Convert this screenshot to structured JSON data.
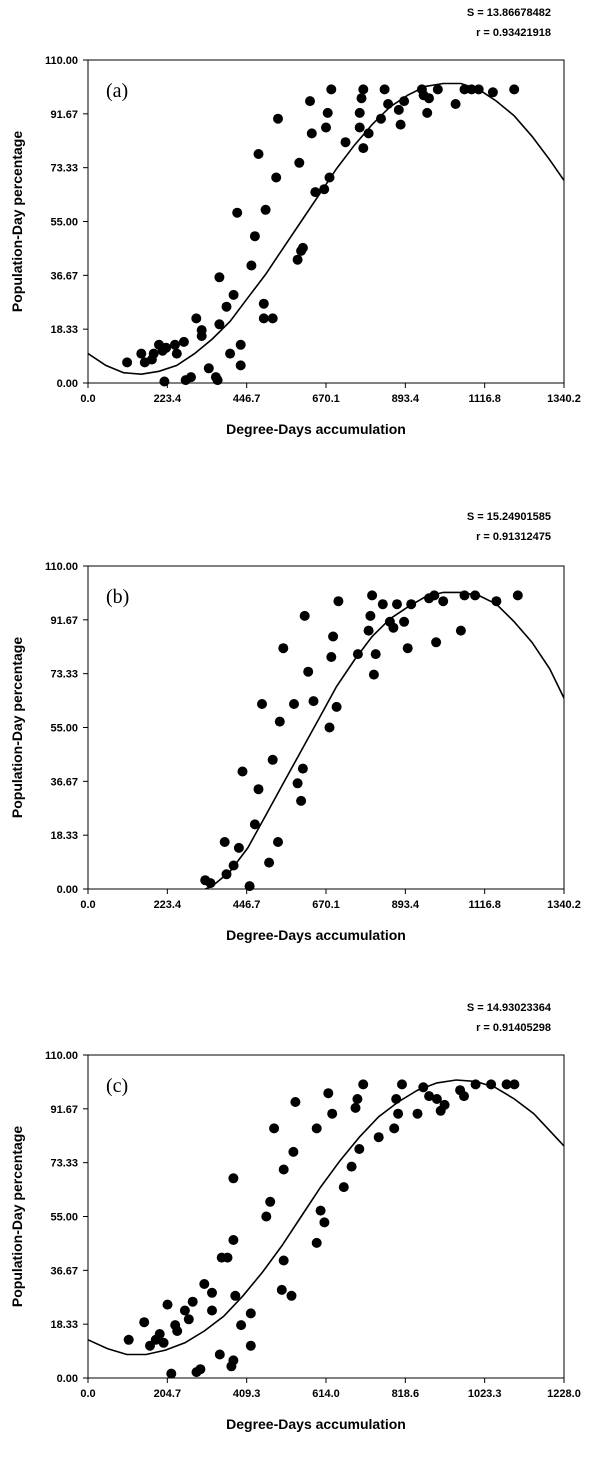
{
  "chart_data": [
    {
      "type": "scatter",
      "panel_label": "(a)",
      "stats": [
        "S = 13.86678482",
        "r = 0.93421918"
      ],
      "xlabel": "Degree-Days accumulation",
      "ylabel": "Population-Day percentage",
      "xlim": [
        0,
        1340.2
      ],
      "ylim": [
        0,
        110
      ],
      "xticks": [
        "0.0",
        "223.4",
        "446.7",
        "670.1",
        "893.4",
        "1116.8",
        "1340.2"
      ],
      "yticks": [
        "0.00",
        "18.33",
        "36.67",
        "55.00",
        "73.33",
        "91.67",
        "110.00"
      ],
      "curve": [
        [
          0,
          10
        ],
        [
          50,
          6
        ],
        [
          100,
          3.5
        ],
        [
          150,
          3
        ],
        [
          200,
          4
        ],
        [
          250,
          6
        ],
        [
          300,
          10
        ],
        [
          350,
          15
        ],
        [
          400,
          21
        ],
        [
          450,
          29
        ],
        [
          500,
          37
        ],
        [
          550,
          46
        ],
        [
          600,
          55
        ],
        [
          650,
          64
        ],
        [
          700,
          73
        ],
        [
          750,
          81
        ],
        [
          800,
          88
        ],
        [
          850,
          94
        ],
        [
          900,
          98
        ],
        [
          950,
          101
        ],
        [
          1000,
          102
        ],
        [
          1050,
          102
        ],
        [
          1100,
          100
        ],
        [
          1150,
          96
        ],
        [
          1200,
          91
        ],
        [
          1250,
          84
        ],
        [
          1300,
          76
        ],
        [
          1340.2,
          69
        ]
      ],
      "points": [
        [
          110,
          7
        ],
        [
          150,
          10
        ],
        [
          160,
          7
        ],
        [
          180,
          8
        ],
        [
          185,
          10
        ],
        [
          200,
          13
        ],
        [
          210,
          11
        ],
        [
          220,
          12
        ],
        [
          215,
          0.5
        ],
        [
          245,
          13
        ],
        [
          250,
          10
        ],
        [
          270,
          14
        ],
        [
          275,
          1
        ],
        [
          290,
          2
        ],
        [
          305,
          22
        ],
        [
          320,
          16
        ],
        [
          320,
          18
        ],
        [
          340,
          5
        ],
        [
          360,
          2
        ],
        [
          365,
          1
        ],
        [
          370,
          20
        ],
        [
          370,
          36
        ],
        [
          390,
          26
        ],
        [
          400,
          10
        ],
        [
          410,
          30
        ],
        [
          420,
          58
        ],
        [
          430,
          6
        ],
        [
          430,
          13
        ],
        [
          460,
          40
        ],
        [
          470,
          50
        ],
        [
          480,
          78
        ],
        [
          495,
          27
        ],
        [
          495,
          22
        ],
        [
          500,
          59
        ],
        [
          520,
          22
        ],
        [
          530,
          70
        ],
        [
          535,
          90
        ],
        [
          590,
          42
        ],
        [
          595,
          75
        ],
        [
          600,
          45
        ],
        [
          605,
          46
        ],
        [
          625,
          96
        ],
        [
          630,
          85
        ],
        [
          640,
          65
        ],
        [
          665,
          66
        ],
        [
          670,
          87
        ],
        [
          675,
          92
        ],
        [
          680,
          70
        ],
        [
          685,
          100
        ],
        [
          725,
          82
        ],
        [
          765,
          87
        ],
        [
          765,
          92
        ],
        [
          770,
          97
        ],
        [
          775,
          100
        ],
        [
          775,
          80
        ],
        [
          790,
          85
        ],
        [
          825,
          90
        ],
        [
          835,
          100
        ],
        [
          845,
          95
        ],
        [
          875,
          93
        ],
        [
          880,
          88
        ],
        [
          890,
          96
        ],
        [
          940,
          100
        ],
        [
          945,
          98
        ],
        [
          955,
          92
        ],
        [
          960,
          97
        ],
        [
          985,
          100
        ],
        [
          1035,
          95
        ],
        [
          1060,
          100
        ],
        [
          1080,
          100
        ],
        [
          1100,
          100
        ],
        [
          1140,
          99
        ],
        [
          1200,
          100
        ]
      ]
    },
    {
      "type": "scatter",
      "panel_label": "(b)",
      "stats": [
        "S = 15.24901585",
        "r = 0.91312475"
      ],
      "xlabel": "Degree-Days accumulation",
      "ylabel": "Population-Day percentage",
      "xlim": [
        0,
        1340.2
      ],
      "ylim": [
        0,
        110
      ],
      "xticks": [
        "0.0",
        "223.4",
        "446.7",
        "670.1",
        "893.4",
        "1116.8",
        "1340.2"
      ],
      "yticks": [
        "0.00",
        "18.33",
        "36.67",
        "55.00",
        "73.33",
        "91.67",
        "110.00"
      ],
      "curve": [
        [
          330,
          0
        ],
        [
          350,
          1
        ],
        [
          400,
          6
        ],
        [
          450,
          14
        ],
        [
          500,
          25
        ],
        [
          550,
          36
        ],
        [
          600,
          47
        ],
        [
          650,
          58
        ],
        [
          700,
          69
        ],
        [
          750,
          78
        ],
        [
          800,
          86
        ],
        [
          850,
          92
        ],
        [
          900,
          96
        ],
        [
          950,
          99.5
        ],
        [
          1000,
          101
        ],
        [
          1050,
          101
        ],
        [
          1100,
          100
        ],
        [
          1150,
          97
        ],
        [
          1200,
          91
        ],
        [
          1250,
          84
        ],
        [
          1300,
          75
        ],
        [
          1340.2,
          65
        ]
      ],
      "points": [
        [
          330,
          3
        ],
        [
          345,
          2
        ],
        [
          385,
          16
        ],
        [
          390,
          5
        ],
        [
          410,
          8
        ],
        [
          425,
          14
        ],
        [
          435,
          40
        ],
        [
          455,
          1
        ],
        [
          470,
          22
        ],
        [
          480,
          34
        ],
        [
          490,
          63
        ],
        [
          510,
          9
        ],
        [
          520,
          44
        ],
        [
          535,
          16
        ],
        [
          540,
          57
        ],
        [
          550,
          82
        ],
        [
          580,
          63
        ],
        [
          590,
          36
        ],
        [
          600,
          30
        ],
        [
          605,
          41
        ],
        [
          610,
          93
        ],
        [
          620,
          74
        ],
        [
          635,
          64
        ],
        [
          680,
          55
        ],
        [
          685,
          79
        ],
        [
          690,
          86
        ],
        [
          700,
          62
        ],
        [
          705,
          98
        ],
        [
          760,
          80
        ],
        [
          790,
          88
        ],
        [
          795,
          93
        ],
        [
          800,
          100
        ],
        [
          805,
          73
        ],
        [
          810,
          80
        ],
        [
          830,
          97
        ],
        [
          850,
          91
        ],
        [
          860,
          89
        ],
        [
          870,
          97
        ],
        [
          890,
          91
        ],
        [
          900,
          82
        ],
        [
          910,
          97
        ],
        [
          960,
          99
        ],
        [
          975,
          100
        ],
        [
          980,
          84
        ],
        [
          1000,
          98
        ],
        [
          1050,
          88
        ],
        [
          1060,
          100
        ],
        [
          1090,
          100
        ],
        [
          1150,
          98
        ],
        [
          1210,
          100
        ]
      ]
    },
    {
      "type": "scatter",
      "panel_label": "(c)",
      "stats": [
        "S = 14.93023364",
        "r = 0.91405298"
      ],
      "xlabel": "Degree-Days accumulation",
      "ylabel": "Population-Day percentage",
      "xlim": [
        0,
        1228
      ],
      "ylim": [
        0,
        110
      ],
      "xticks": [
        "0.0",
        "204.7",
        "409.3",
        "614.0",
        "818.6",
        "1023.3",
        "1228.0"
      ],
      "yticks": [
        "0.00",
        "18.33",
        "36.67",
        "55.00",
        "73.33",
        "91.67",
        "110.00"
      ],
      "curve": [
        [
          0,
          13
        ],
        [
          50,
          10
        ],
        [
          100,
          8
        ],
        [
          150,
          8
        ],
        [
          200,
          9.5
        ],
        [
          250,
          12
        ],
        [
          300,
          16
        ],
        [
          350,
          21
        ],
        [
          400,
          28
        ],
        [
          450,
          36
        ],
        [
          500,
          45
        ],
        [
          550,
          55
        ],
        [
          600,
          65
        ],
        [
          650,
          74
        ],
        [
          700,
          82
        ],
        [
          750,
          89
        ],
        [
          800,
          94
        ],
        [
          850,
          98
        ],
        [
          900,
          100.5
        ],
        [
          950,
          101.5
        ],
        [
          1000,
          101
        ],
        [
          1050,
          99
        ],
        [
          1100,
          95
        ],
        [
          1150,
          90
        ],
        [
          1200,
          83
        ],
        [
          1228,
          79
        ]
      ],
      "points": [
        [
          105,
          13
        ],
        [
          145,
          19
        ],
        [
          160,
          11
        ],
        [
          175,
          13
        ],
        [
          185,
          15
        ],
        [
          195,
          12
        ],
        [
          205,
          25
        ],
        [
          215,
          1.5
        ],
        [
          225,
          18
        ],
        [
          230,
          16
        ],
        [
          250,
          23
        ],
        [
          260,
          20
        ],
        [
          270,
          26
        ],
        [
          280,
          2
        ],
        [
          290,
          3
        ],
        [
          300,
          32
        ],
        [
          320,
          29
        ],
        [
          320,
          23
        ],
        [
          340,
          8
        ],
        [
          345,
          41
        ],
        [
          360,
          41
        ],
        [
          370,
          4
        ],
        [
          375,
          6
        ],
        [
          375,
          68
        ],
        [
          375,
          47
        ],
        [
          380,
          28
        ],
        [
          395,
          18
        ],
        [
          420,
          22
        ],
        [
          420,
          11
        ],
        [
          460,
          55
        ],
        [
          470,
          60
        ],
        [
          480,
          85
        ],
        [
          500,
          30
        ],
        [
          505,
          40
        ],
        [
          505,
          71
        ],
        [
          525,
          28
        ],
        [
          530,
          77
        ],
        [
          535,
          94
        ],
        [
          590,
          85
        ],
        [
          590,
          46
        ],
        [
          600,
          57
        ],
        [
          610,
          53
        ],
        [
          620,
          97
        ],
        [
          630,
          90
        ],
        [
          660,
          65
        ],
        [
          680,
          72
        ],
        [
          690,
          92
        ],
        [
          695,
          95
        ],
        [
          700,
          78
        ],
        [
          710,
          100
        ],
        [
          750,
          82
        ],
        [
          790,
          85
        ],
        [
          795,
          95
        ],
        [
          800,
          90
        ],
        [
          810,
          100
        ],
        [
          850,
          90
        ],
        [
          865,
          99
        ],
        [
          880,
          96
        ],
        [
          900,
          95
        ],
        [
          910,
          91
        ],
        [
          920,
          93
        ],
        [
          960,
          98
        ],
        [
          970,
          96
        ],
        [
          1000,
          100
        ],
        [
          1040,
          100
        ],
        [
          1080,
          100
        ],
        [
          1100,
          100
        ]
      ]
    }
  ]
}
